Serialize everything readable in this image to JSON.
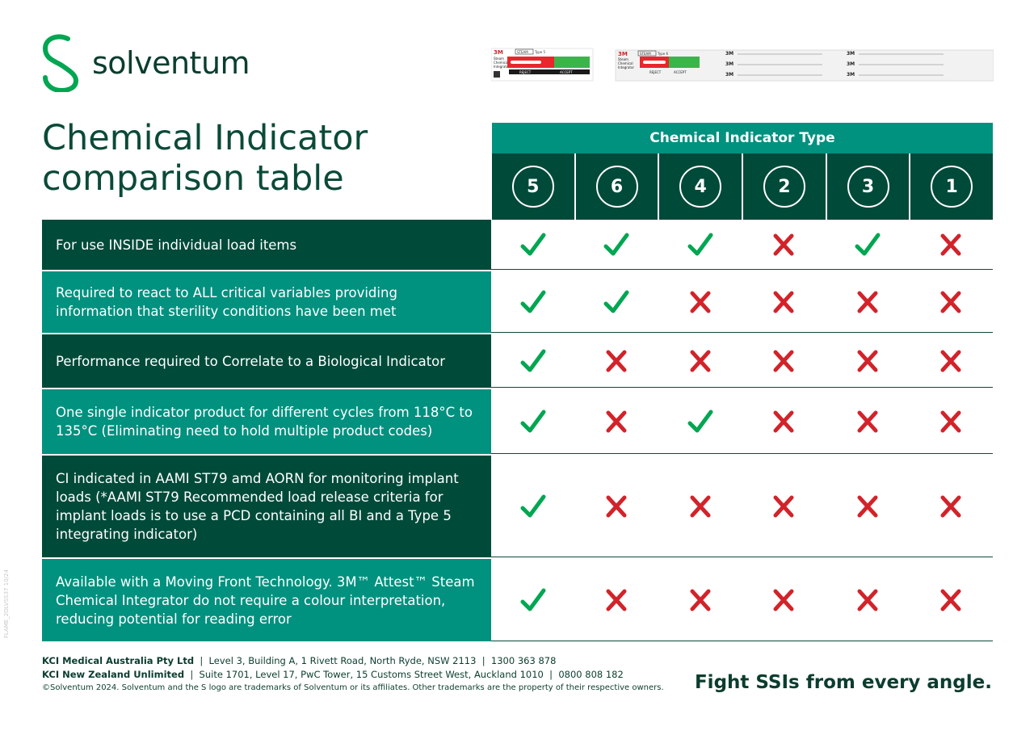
{
  "brand": {
    "name": "solventum",
    "color": "#0b3d2e",
    "accent": "#00a651"
  },
  "strip_a": {
    "brand": "3M",
    "badge": "STEAM",
    "type": "Type 5",
    "name_lines": [
      "Steam",
      "Chemical",
      "Integrator"
    ],
    "reject": "REJECT",
    "accept": "ACCEPT"
  },
  "strip_b": {
    "brand": "3M",
    "badge": "STEAM",
    "type": "Type 6",
    "name_lines": [
      "Steam",
      "Chemical",
      "Integrator"
    ],
    "reject": "REJECT",
    "accept": "ACCEPT",
    "repeat_mark": "3M"
  },
  "title": {
    "line1": "Chemical Indicator",
    "line2": "comparison table"
  },
  "header": {
    "label": "Chemical Indicator Type"
  },
  "types": [
    "5",
    "6",
    "4",
    "2",
    "3",
    "1"
  ],
  "rows": [
    {
      "label": "For use INSIDE individual load items",
      "style": "dark",
      "marks": [
        "check",
        "check",
        "check",
        "cross",
        "check",
        "cross"
      ]
    },
    {
      "label": "Required to react to ALL critical variables providing information that sterility conditions have been met",
      "style": "teal",
      "marks": [
        "check",
        "check",
        "cross",
        "cross",
        "cross",
        "cross"
      ]
    },
    {
      "label": "Performance required to Correlate to a Biological Indicator",
      "style": "dark",
      "marks": [
        "check",
        "cross",
        "cross",
        "cross",
        "cross",
        "cross"
      ]
    },
    {
      "label": "One single indicator product for different cycles from 118°C to 135°C (Eliminating need to hold multiple product codes)",
      "style": "teal",
      "marks": [
        "check",
        "cross",
        "check",
        "cross",
        "cross",
        "cross"
      ]
    },
    {
      "label": "CI indicated in AAMI ST79 amd AORN for monitoring implant loads (*AAMI ST79 Recommended load release criteria for implant loads is to use a PCD containing all BI and a Type 5 integrating indicator)",
      "style": "dark",
      "marks": [
        "check",
        "cross",
        "cross",
        "cross",
        "cross",
        "cross"
      ]
    },
    {
      "label": "Available with a Moving Front Technology. 3M™ Attest™ Steam Chemical Integrator do not require a colour interpretation, reducing potential for reading error",
      "style": "teal",
      "marks": [
        "check",
        "cross",
        "cross",
        "cross",
        "cross",
        "cross"
      ]
    }
  ],
  "colors": {
    "dark": "#004a3a",
    "teal": "#00917f",
    "check": "#00a651",
    "cross": "#d2232a"
  },
  "footer": {
    "line1_company": "KCI Medical Australia Pty Ltd",
    "line1_rest": "  |  Level 3, Building A, 1 Rivett Road, North Ryde, NSW 2113  |  1300 363 878",
    "line2_company": "KCI New Zealand Unlimited",
    "line2_rest": "  |  Suite 1701, Level 17, PwC Tower, 15 Customs Street West, Auckland 1010  |  0800 808 182",
    "copyright": "©Solventum 2024. Solventum and the S logo are trademarks of Solventum or its affiliates. Other trademarks are the property of their respective owners."
  },
  "tagline": "Fight SSIs from every angle.",
  "side_code": "FLAME_2OLVSS37 10/24"
}
